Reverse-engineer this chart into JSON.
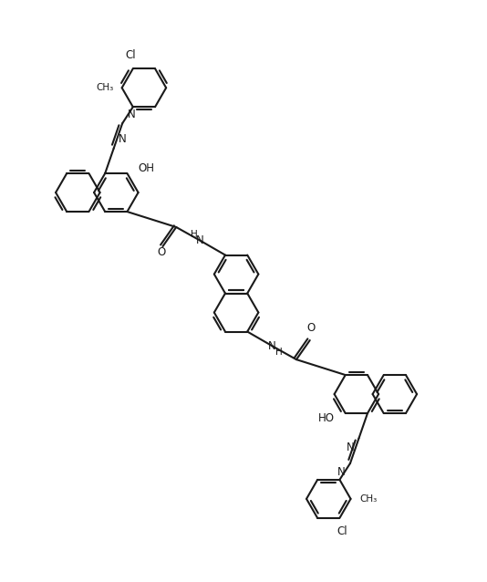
{
  "bg_color": "#ffffff",
  "line_color": "#1a1a1a",
  "line_width": 1.5,
  "font_size": 8.5,
  "figsize": [
    5.34,
    6.38
  ],
  "dpi": 100,
  "xlim": [
    0,
    10
  ],
  "ylim": [
    0,
    12
  ]
}
